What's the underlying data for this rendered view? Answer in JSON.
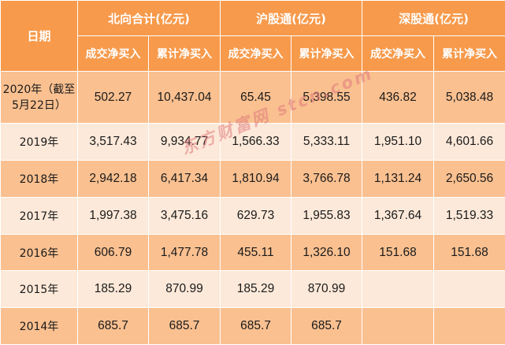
{
  "header": {
    "date": "日期",
    "northbound_total": "北向合计(亿元)",
    "shanghai_connect": "沪股通(亿元)",
    "shenzhen_connect": "深股通(亿元)",
    "sub": [
      "成交净买入",
      "累计净买入",
      "成交净买入",
      "累计净买入",
      "成交净买入",
      "累计净买入"
    ]
  },
  "rows": [
    {
      "date": "2020年（截至5月22日）",
      "values": [
        "502.27",
        "10,437.04",
        "65.45",
        "5,398.55",
        "436.82",
        "5,038.48"
      ]
    },
    {
      "date": "2019年",
      "values": [
        "3,517.43",
        "9,934.77",
        "1,566.33",
        "5,333.11",
        "1,951.10",
        "4,601.66"
      ]
    },
    {
      "date": "2018年",
      "values": [
        "2,942.18",
        "6,417.34",
        "1,810.94",
        "3,766.78",
        "1,131.24",
        "2,650.56"
      ]
    },
    {
      "date": "2017年",
      "values": [
        "1,997.38",
        "3,475.16",
        "629.73",
        "1,955.83",
        "1,367.64",
        "1,519.33"
      ]
    },
    {
      "date": "2016年",
      "values": [
        "606.79",
        "1,477.78",
        "455.11",
        "1,326.10",
        "151.68",
        "151.68"
      ]
    },
    {
      "date": "2015年",
      "values": [
        "185.29",
        "870.99",
        "185.29",
        "870.99",
        "",
        ""
      ]
    },
    {
      "date": "2014年",
      "values": [
        "685.7",
        "685.7",
        "685.7",
        "685.7",
        "",
        ""
      ]
    }
  ],
  "watermark": "东方财富网 stcn.com"
}
